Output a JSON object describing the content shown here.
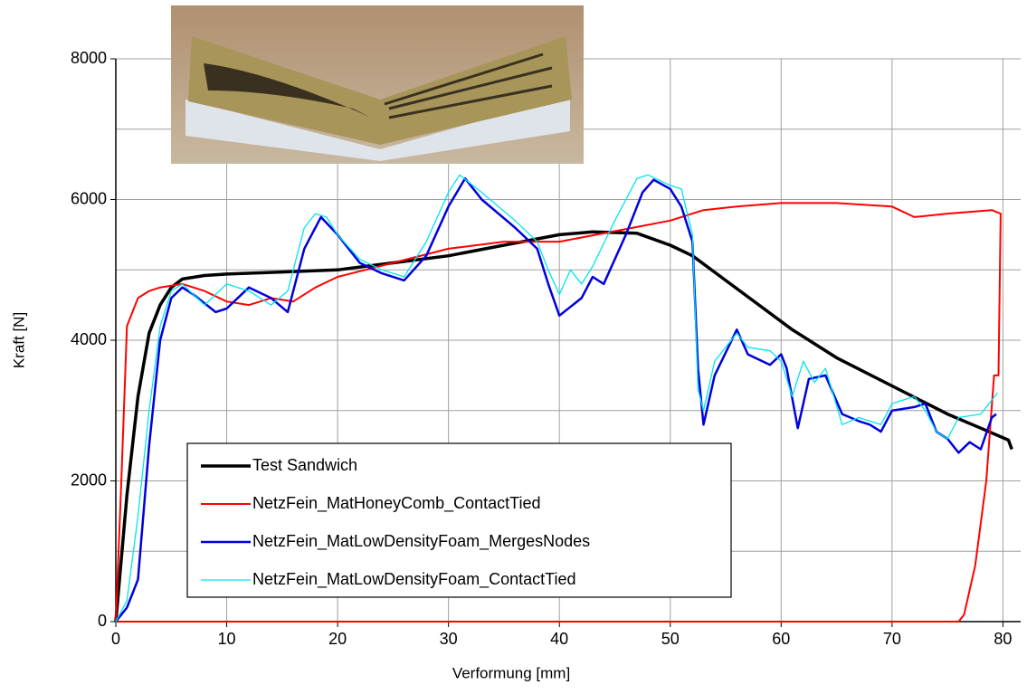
{
  "chart_data": {
    "type": "line",
    "x_label": "Verformung [mm]",
    "y_label": "Kraft [N]",
    "xlim": [
      0,
      81.6
    ],
    "ylim": [
      0,
      8000
    ],
    "xticks": [
      0,
      10,
      20,
      30,
      40,
      50,
      60,
      70,
      80
    ],
    "yticks": [
      0,
      2000,
      4000,
      6000,
      8000
    ],
    "y_minor_grid": [
      1000,
      3000,
      5000,
      7000
    ],
    "grid": true,
    "legend": "lower left",
    "series": [
      {
        "name": "Test Sandwich",
        "color": "#000000",
        "line_width": 3.5,
        "x": [
          0,
          1,
          2,
          3,
          4,
          5,
          6,
          8,
          10,
          15,
          20,
          25,
          30,
          35,
          40,
          43,
          47,
          50,
          52,
          55,
          58,
          61,
          65,
          70,
          75,
          78,
          80.5,
          80.8
        ],
        "values": [
          0,
          1800,
          3200,
          4100,
          4500,
          4750,
          4870,
          4920,
          4940,
          4970,
          5000,
          5100,
          5200,
          5350,
          5500,
          5540,
          5520,
          5350,
          5200,
          4850,
          4500,
          4150,
          3750,
          3350,
          2950,
          2750,
          2580,
          2450
        ]
      },
      {
        "name": "NetzFein_MatHoneyComb_ContactTied",
        "color": "#ff0000",
        "line_width": 2,
        "x": [
          0,
          0.5,
          1,
          2,
          3,
          4,
          6,
          8,
          10,
          12,
          14,
          16,
          18,
          20,
          25,
          30,
          35,
          40,
          45,
          50,
          53,
          56,
          60,
          65,
          70,
          72,
          75,
          79,
          79.8,
          79.6,
          79.2,
          78.5,
          77.5,
          76.5,
          76,
          0
        ],
        "values": [
          0,
          2000,
          4200,
          4600,
          4700,
          4750,
          4800,
          4700,
          4550,
          4500,
          4600,
          4550,
          4750,
          4900,
          5100,
          5300,
          5400,
          5400,
          5550,
          5700,
          5850,
          5900,
          5950,
          5950,
          5900,
          5750,
          5800,
          5850,
          5800,
          3500,
          3500,
          2000,
          800,
          100,
          0,
          0
        ]
      },
      {
        "name": "NetzFein_MatLowDensityFoam_MergesNodes",
        "color": "#0000dd",
        "line_width": 2.5,
        "x": [
          0,
          1,
          2,
          3,
          4,
          5,
          6,
          7,
          9,
          10,
          12,
          14,
          15.5,
          17,
          18.5,
          20,
          22,
          24,
          26,
          28,
          30,
          31.5,
          33,
          36,
          38,
          39,
          40,
          42,
          43,
          44,
          46,
          47.5,
          48.5,
          50,
          51,
          52,
          52.5,
          53,
          54,
          56,
          57,
          59,
          60,
          60.5,
          61.5,
          62.5,
          64,
          65.5,
          67,
          68,
          69,
          70,
          72,
          73,
          74,
          75,
          76,
          77,
          78,
          79,
          79.4
        ],
        "values": [
          0,
          200,
          600,
          2500,
          4000,
          4600,
          4750,
          4650,
          4400,
          4450,
          4750,
          4600,
          4400,
          5300,
          5750,
          5500,
          5100,
          4950,
          4850,
          5200,
          5900,
          6300,
          6000,
          5600,
          5300,
          4800,
          4350,
          4600,
          4900,
          4800,
          5500,
          6100,
          6280,
          6150,
          5900,
          5400,
          3600,
          2800,
          3500,
          4150,
          3800,
          3650,
          3800,
          3600,
          2750,
          3450,
          3500,
          2950,
          2850,
          2800,
          2700,
          3000,
          3050,
          3100,
          2700,
          2600,
          2400,
          2550,
          2450,
          2900,
          2950
        ]
      },
      {
        "name": "NetzFein_MatLowDensityFoam_ContactTied",
        "color": "#00e5ee",
        "line_width": 1.3,
        "x": [
          0,
          1,
          2,
          3,
          4,
          5,
          6,
          8,
          10,
          12,
          14,
          15.5,
          17,
          18,
          19,
          20,
          22,
          24,
          26,
          28,
          30,
          31,
          33,
          36,
          38,
          39,
          40,
          41,
          42,
          43,
          45,
          47,
          48,
          50,
          51,
          52,
          52.5,
          53,
          54,
          56,
          57,
          59,
          60,
          61,
          62,
          63,
          64,
          65.5,
          67,
          69,
          70,
          72,
          73,
          74,
          75,
          76,
          78,
          79.5
        ],
        "values": [
          0,
          300,
          1500,
          3000,
          4200,
          4700,
          4800,
          4500,
          4800,
          4700,
          4500,
          4700,
          5600,
          5800,
          5750,
          5500,
          5150,
          5000,
          4900,
          5400,
          6100,
          6350,
          6100,
          5700,
          5400,
          5000,
          4650,
          5000,
          4800,
          5050,
          5700,
          6300,
          6350,
          6200,
          6150,
          5500,
          3300,
          3000,
          3700,
          4100,
          3900,
          3850,
          3700,
          3200,
          3700,
          3400,
          3600,
          2800,
          2900,
          2800,
          3100,
          3200,
          3000,
          2700,
          2600,
          2900,
          2950,
          3250
        ]
      }
    ]
  }
}
